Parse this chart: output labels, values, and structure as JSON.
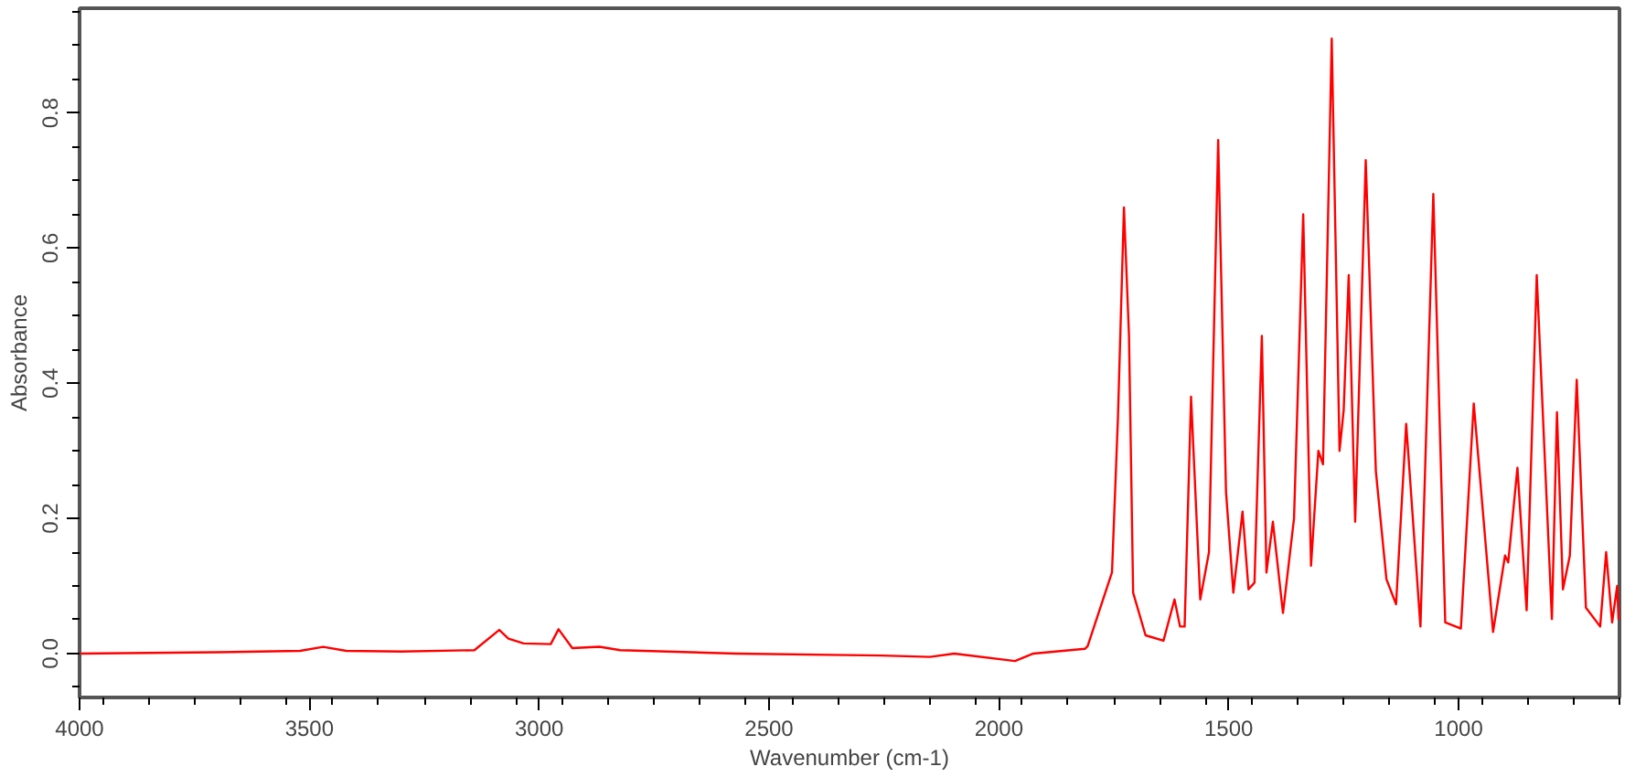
{
  "chart_data": {
    "type": "line",
    "xlabel": "Wavenumber (cm-1)",
    "ylabel": "Absorbance",
    "xlim": [
      4000,
      650
    ],
    "ylim": [
      -0.065,
      0.955
    ],
    "xticks": [
      4000,
      3500,
      3000,
      2500,
      2000,
      1500,
      1000
    ],
    "yticks": [
      {
        "value": 0.0,
        "label": "0.0"
      },
      {
        "value": 0.2,
        "label": "0.2"
      },
      {
        "value": 0.4,
        "label": "0.4"
      },
      {
        "value": 0.6,
        "label": "0.6"
      },
      {
        "value": 0.8,
        "label": "0.8"
      }
    ],
    "grid": false,
    "marker": "none",
    "line_style": "solid",
    "series": [
      {
        "color": "#ff0000",
        "x": [
          4000,
          3700,
          3520,
          3470,
          3420,
          3300,
          3141,
          3087,
          3067,
          3034,
          2975,
          2958,
          2928,
          2869,
          2824,
          2572,
          2255,
          2150,
          2097,
          1965,
          1925,
          1813,
          1807,
          1754,
          1741,
          1728,
          1717,
          1708,
          1681,
          1642,
          1618,
          1606,
          1596,
          1582,
          1562,
          1543,
          1523,
          1506,
          1490,
          1470,
          1457,
          1444,
          1428,
          1418,
          1404,
          1382,
          1358,
          1338,
          1321,
          1305,
          1295,
          1276,
          1259,
          1250,
          1239,
          1225,
          1202,
          1180,
          1157,
          1136,
          1114,
          1083,
          1055,
          1029,
          995,
          967,
          925,
          899,
          892,
          872,
          852,
          830,
          797,
          786,
          773,
          758,
          743,
          723,
          692,
          679,
          666,
          655,
          652
        ],
        "values": [
          0.0,
          0.002,
          0.004,
          0.01,
          0.004,
          0.003,
          0.005,
          0.035,
          0.022,
          0.015,
          0.014,
          0.036,
          0.008,
          0.01,
          0.005,
          0.0,
          -0.003,
          -0.005,
          0.0,
          -0.011,
          0.0,
          0.007,
          0.011,
          0.12,
          0.35,
          0.66,
          0.47,
          0.09,
          0.027,
          0.019,
          0.08,
          0.04,
          0.04,
          0.38,
          0.08,
          0.15,
          0.76,
          0.24,
          0.09,
          0.21,
          0.095,
          0.105,
          0.47,
          0.12,
          0.195,
          0.06,
          0.2,
          0.65,
          0.13,
          0.3,
          0.28,
          0.91,
          0.3,
          0.36,
          0.56,
          0.195,
          0.73,
          0.27,
          0.11,
          0.073,
          0.34,
          0.04,
          0.68,
          0.046,
          0.037,
          0.37,
          0.032,
          0.145,
          0.135,
          0.275,
          0.064,
          0.56,
          0.051,
          0.357,
          0.095,
          0.145,
          0.405,
          0.068,
          0.04,
          0.15,
          0.046,
          0.1,
          0.05
        ]
      }
    ]
  }
}
